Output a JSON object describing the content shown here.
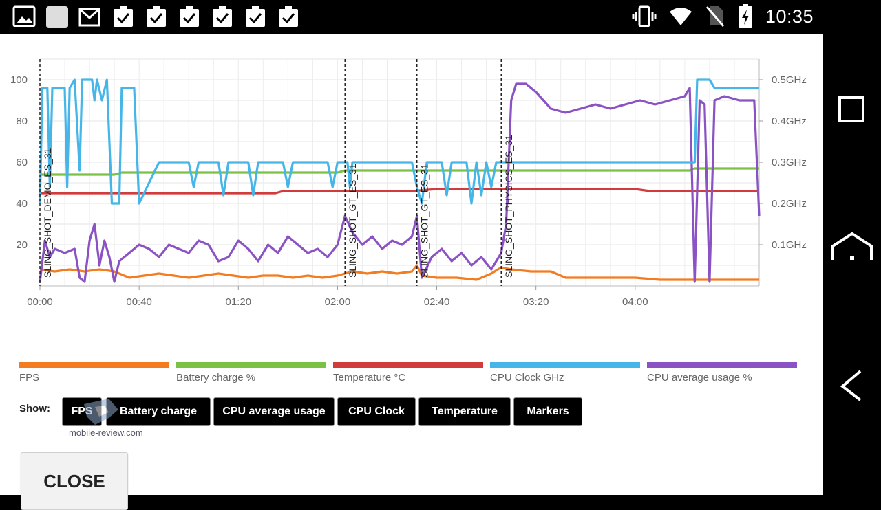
{
  "status_bar": {
    "time": "10:35",
    "left_icons": [
      "image-icon",
      "blank-square-icon",
      "gmail-icon",
      "task-icon",
      "task-icon",
      "task-icon",
      "task-icon",
      "task-icon",
      "task-icon"
    ],
    "right_icons": [
      "vibrate-icon",
      "wifi-icon",
      "no-sim-icon",
      "battery-charging-icon"
    ]
  },
  "nav_bar": {
    "buttons": [
      "recents-icon",
      "home-icon",
      "back-icon"
    ]
  },
  "chart": {
    "left_ticks": [
      "100",
      "80",
      "60",
      "40",
      "20"
    ],
    "right_ticks": [
      "0.5GHz",
      "0.4GHz",
      "0.3GHz",
      "0.2GHz",
      "0.1GHz"
    ],
    "x_ticks": [
      "00:00",
      "00:40",
      "01:20",
      "02:00",
      "02:40",
      "03:20",
      "04:00"
    ],
    "markers": [
      "SLING_SHOT_DEMO_ES_31",
      "SLING_SHOT_GT_ES_31",
      "SLING_SHOT_GT_ES_31",
      "SLING_SHOT_PHYSICS_ES_31"
    ]
  },
  "chart_data": {
    "type": "line",
    "x_unit": "mm:ss",
    "x_ticks": [
      "00:00",
      "00:40",
      "01:20",
      "02:00",
      "02:40",
      "03:20",
      "04:00"
    ],
    "y_left_range": [
      0,
      110
    ],
    "y_right_range_ghz": [
      0,
      0.55
    ],
    "grid": true,
    "legend_position": "bottom",
    "markers": [
      {
        "label": "SLING_SHOT_DEMO_ES_31",
        "x": "00:00"
      },
      {
        "label": "SLING_SHOT_GT_ES_31",
        "x": "02:03"
      },
      {
        "label": "SLING_SHOT_GT_ES_31",
        "x": "02:32"
      },
      {
        "label": "SLING_SHOT_PHYSICS_ES_31",
        "x": "03:06"
      }
    ],
    "series": [
      {
        "name": "FPS",
        "color": "#f47c20",
        "axis": "left",
        "points": [
          [
            0,
            8
          ],
          [
            6,
            7
          ],
          [
            12,
            8
          ],
          [
            18,
            7
          ],
          [
            24,
            8
          ],
          [
            30,
            7
          ],
          [
            36,
            4
          ],
          [
            42,
            5
          ],
          [
            48,
            6
          ],
          [
            54,
            5
          ],
          [
            60,
            4
          ],
          [
            66,
            5
          ],
          [
            72,
            6
          ],
          [
            78,
            5
          ],
          [
            84,
            4
          ],
          [
            90,
            5
          ],
          [
            96,
            5
          ],
          [
            102,
            4
          ],
          [
            108,
            5
          ],
          [
            114,
            4
          ],
          [
            120,
            5
          ],
          [
            123,
            6
          ],
          [
            126,
            7
          ],
          [
            132,
            6
          ],
          [
            138,
            7
          ],
          [
            144,
            6
          ],
          [
            150,
            7
          ],
          [
            152,
            10
          ],
          [
            154,
            5
          ],
          [
            160,
            4
          ],
          [
            168,
            4
          ],
          [
            176,
            3
          ],
          [
            182,
            6
          ],
          [
            186,
            9
          ],
          [
            190,
            8
          ],
          [
            198,
            7
          ],
          [
            206,
            7
          ],
          [
            212,
            4
          ],
          [
            220,
            4
          ],
          [
            230,
            4
          ],
          [
            240,
            4
          ],
          [
            250,
            3
          ],
          [
            256,
            3
          ],
          [
            262,
            3
          ],
          [
            272,
            3
          ],
          [
            282,
            3
          ],
          [
            290,
            3
          ]
        ]
      },
      {
        "name": "Battery charge %",
        "color": "#7bc143",
        "axis": "left",
        "points": [
          [
            0,
            54
          ],
          [
            30,
            54
          ],
          [
            33,
            55
          ],
          [
            120,
            55
          ],
          [
            123,
            56
          ],
          [
            190,
            56
          ],
          [
            220,
            56
          ],
          [
            262,
            56
          ],
          [
            264,
            57
          ],
          [
            290,
            57
          ]
        ]
      },
      {
        "name": "Temperature °C",
        "color": "#d23b3b",
        "axis": "left",
        "points": [
          [
            0,
            45
          ],
          [
            20,
            45
          ],
          [
            40,
            45
          ],
          [
            60,
            45
          ],
          [
            80,
            45
          ],
          [
            95,
            45
          ],
          [
            98,
            46
          ],
          [
            130,
            46
          ],
          [
            150,
            46
          ],
          [
            160,
            47
          ],
          [
            200,
            47
          ],
          [
            220,
            47
          ],
          [
            240,
            47
          ],
          [
            246,
            46
          ],
          [
            270,
            46
          ],
          [
            290,
            46
          ]
        ]
      },
      {
        "name": "CPU Clock GHz",
        "color": "#46b6e8",
        "axis": "right",
        "points": [
          [
            0,
            0.2
          ],
          [
            1,
            0.48
          ],
          [
            3,
            0.48
          ],
          [
            4,
            0.24
          ],
          [
            5,
            0.48
          ],
          [
            10,
            0.48
          ],
          [
            11,
            0.24
          ],
          [
            12,
            0.48
          ],
          [
            14,
            0.5
          ],
          [
            16,
            0.28
          ],
          [
            17,
            0.5
          ],
          [
            21,
            0.5
          ],
          [
            22,
            0.45
          ],
          [
            23,
            0.5
          ],
          [
            25,
            0.45
          ],
          [
            27,
            0.5
          ],
          [
            29,
            0.2
          ],
          [
            32,
            0.2
          ],
          [
            33,
            0.48
          ],
          [
            38,
            0.48
          ],
          [
            40,
            0.2
          ],
          [
            48,
            0.3
          ],
          [
            60,
            0.3
          ],
          [
            62,
            0.24
          ],
          [
            64,
            0.3
          ],
          [
            72,
            0.3
          ],
          [
            74,
            0.22
          ],
          [
            76,
            0.3
          ],
          [
            84,
            0.3
          ],
          [
            86,
            0.22
          ],
          [
            88,
            0.3
          ],
          [
            98,
            0.3
          ],
          [
            100,
            0.24
          ],
          [
            102,
            0.3
          ],
          [
            116,
            0.3
          ],
          [
            118,
            0.24
          ],
          [
            120,
            0.3
          ],
          [
            124,
            0.3
          ],
          [
            125,
            0.24
          ],
          [
            126,
            0.3
          ],
          [
            150,
            0.3
          ],
          [
            152,
            0.24
          ],
          [
            154,
            0.2
          ],
          [
            156,
            0.3
          ],
          [
            162,
            0.3
          ],
          [
            164,
            0.22
          ],
          [
            166,
            0.3
          ],
          [
            172,
            0.3
          ],
          [
            174,
            0.2
          ],
          [
            176,
            0.3
          ],
          [
            178,
            0.22
          ],
          [
            180,
            0.3
          ],
          [
            182,
            0.24
          ],
          [
            184,
            0.3
          ],
          [
            190,
            0.3
          ],
          [
            200,
            0.3
          ],
          [
            220,
            0.3
          ],
          [
            240,
            0.3
          ],
          [
            258,
            0.3
          ],
          [
            264,
            0.3
          ],
          [
            265,
            0.5
          ],
          [
            270,
            0.5
          ],
          [
            272,
            0.48
          ],
          [
            290,
            0.48
          ]
        ]
      },
      {
        "name": "CPU average usage %",
        "color": "#8b52c4",
        "axis": "left",
        "points": [
          [
            0,
            2
          ],
          [
            2,
            22
          ],
          [
            4,
            14
          ],
          [
            6,
            18
          ],
          [
            10,
            16
          ],
          [
            14,
            18
          ],
          [
            16,
            4
          ],
          [
            18,
            2
          ],
          [
            20,
            22
          ],
          [
            22,
            30
          ],
          [
            24,
            10
          ],
          [
            26,
            22
          ],
          [
            28,
            14
          ],
          [
            30,
            2
          ],
          [
            32,
            12
          ],
          [
            36,
            16
          ],
          [
            40,
            20
          ],
          [
            44,
            18
          ],
          [
            48,
            14
          ],
          [
            52,
            20
          ],
          [
            56,
            18
          ],
          [
            60,
            16
          ],
          [
            64,
            22
          ],
          [
            68,
            20
          ],
          [
            72,
            12
          ],
          [
            76,
            14
          ],
          [
            80,
            22
          ],
          [
            84,
            18
          ],
          [
            88,
            12
          ],
          [
            92,
            20
          ],
          [
            96,
            16
          ],
          [
            100,
            24
          ],
          [
            104,
            20
          ],
          [
            108,
            16
          ],
          [
            112,
            18
          ],
          [
            116,
            14
          ],
          [
            120,
            20
          ],
          [
            123,
            34
          ],
          [
            126,
            26
          ],
          [
            130,
            20
          ],
          [
            134,
            24
          ],
          [
            138,
            18
          ],
          [
            142,
            22
          ],
          [
            146,
            20
          ],
          [
            150,
            24
          ],
          [
            152,
            34
          ],
          [
            154,
            4
          ],
          [
            158,
            14
          ],
          [
            162,
            18
          ],
          [
            166,
            12
          ],
          [
            170,
            16
          ],
          [
            174,
            10
          ],
          [
            178,
            14
          ],
          [
            182,
            8
          ],
          [
            186,
            16
          ],
          [
            188,
            30
          ],
          [
            190,
            90
          ],
          [
            192,
            98
          ],
          [
            196,
            98
          ],
          [
            200,
            94
          ],
          [
            206,
            86
          ],
          [
            212,
            84
          ],
          [
            218,
            86
          ],
          [
            224,
            88
          ],
          [
            230,
            86
          ],
          [
            236,
            88
          ],
          [
            242,
            90
          ],
          [
            248,
            88
          ],
          [
            254,
            90
          ],
          [
            260,
            92
          ],
          [
            262,
            96
          ],
          [
            264,
            2
          ],
          [
            266,
            90
          ],
          [
            268,
            88
          ],
          [
            270,
            2
          ],
          [
            272,
            90
          ],
          [
            276,
            92
          ],
          [
            282,
            90
          ],
          [
            288,
            90
          ],
          [
            290,
            34
          ]
        ]
      }
    ]
  },
  "legend": {
    "items": [
      {
        "label": "FPS",
        "color": "#f47c20"
      },
      {
        "label": "Battery charge %",
        "color": "#7bc143"
      },
      {
        "label": "Temperature °C",
        "color": "#d23b3b"
      },
      {
        "label": "CPU Clock GHz",
        "color": "#46b6e8"
      },
      {
        "label": "CPU average usage %",
        "color": "#8b52c4"
      }
    ]
  },
  "show": {
    "label": "Show:",
    "toggles": [
      "FPS",
      "Battery charge",
      "CPU average usage",
      "CPU Clock",
      "Temperature",
      "Markers"
    ]
  },
  "watermark": "mobile-review.com",
  "close_label": "CLOSE"
}
